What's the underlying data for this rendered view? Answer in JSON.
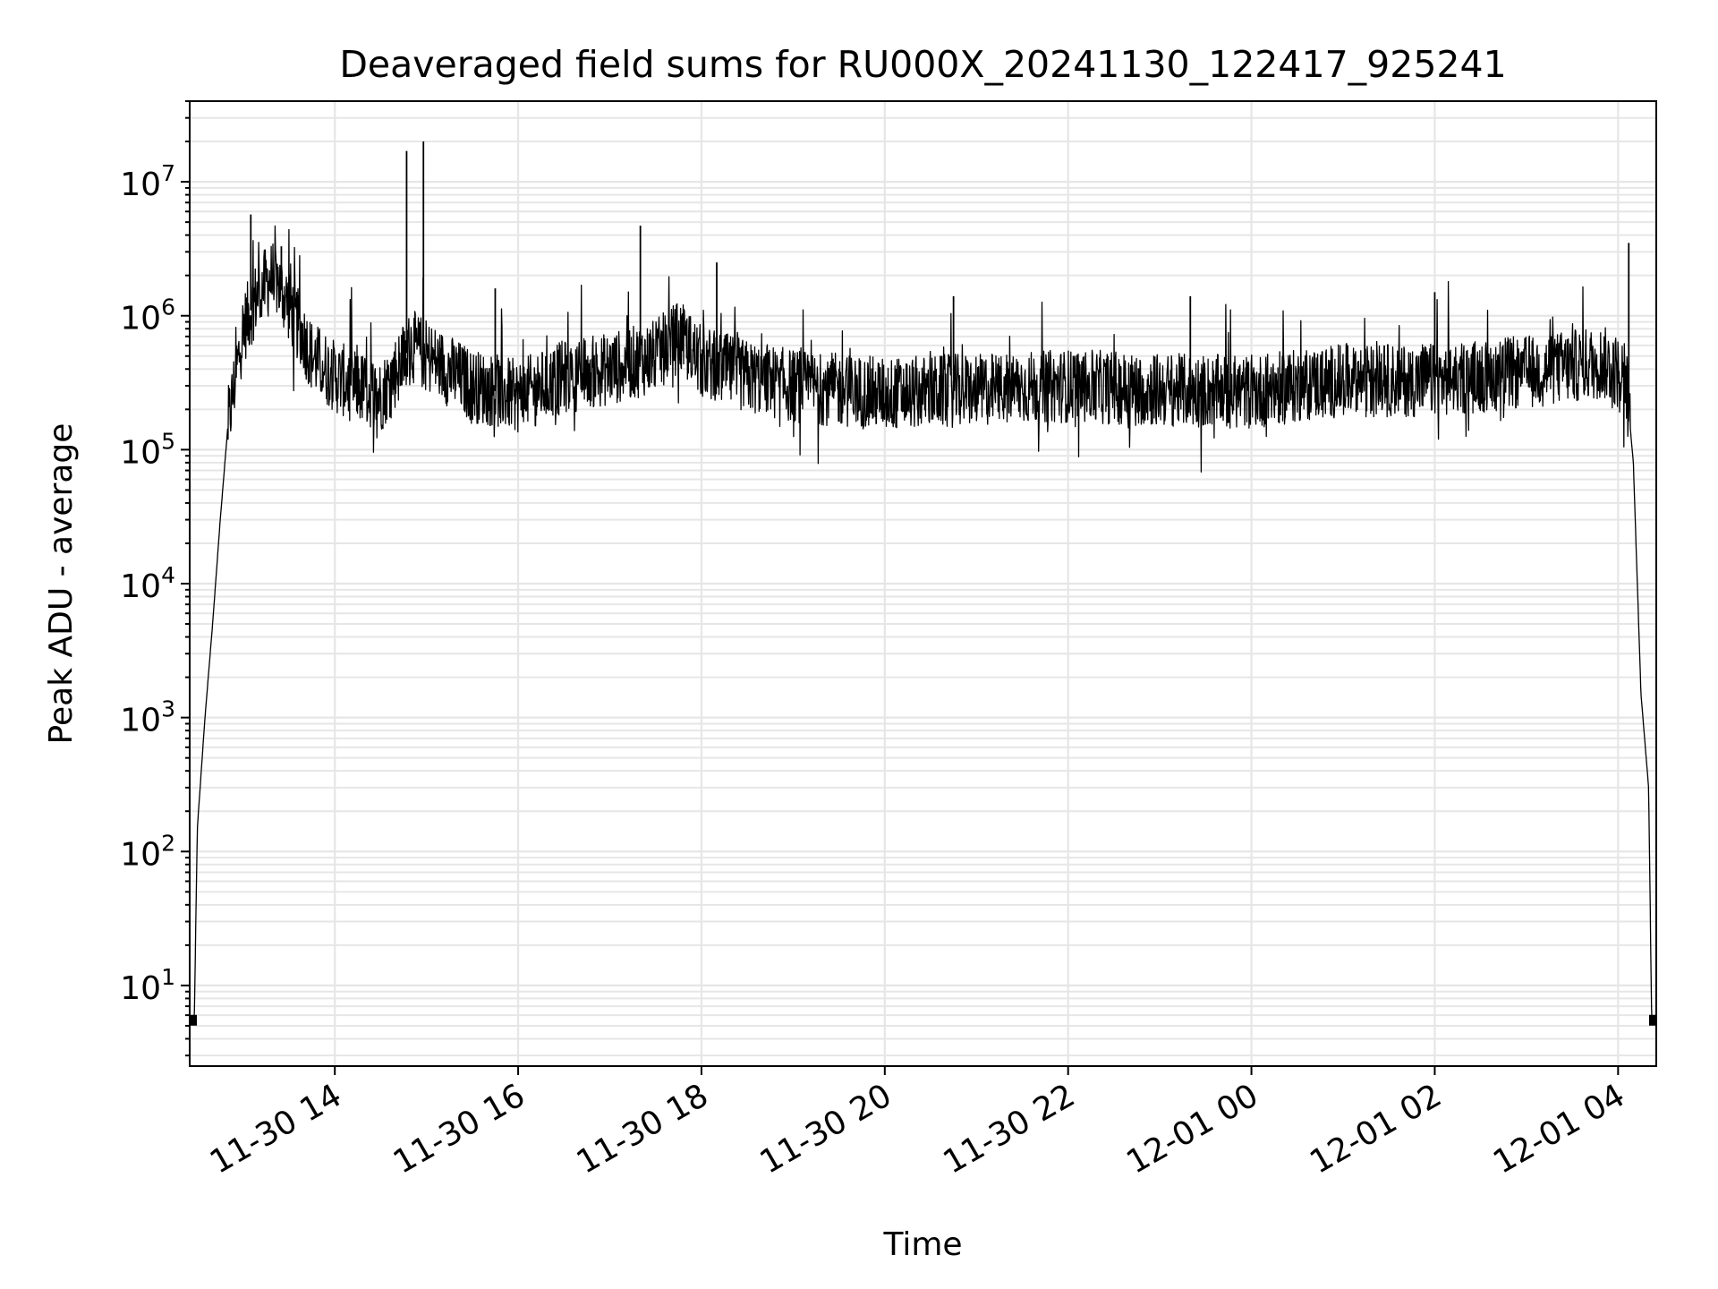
{
  "chart_data": {
    "type": "line",
    "title": "Deaveraged field sums for RU000X_20241130_122417_925241",
    "xlabel": "Time",
    "ylabel": "Peak ADU - average",
    "y_scale": "log",
    "ylim": [
      2.5,
      40000000
    ],
    "xlim": [
      "2024-11-30 12:25",
      "2024-12-01 04:25"
    ],
    "x_ticks": [
      {
        "label": "11-30 14",
        "value": "2024-11-30 14:00"
      },
      {
        "label": "11-30 16",
        "value": "2024-11-30 16:00"
      },
      {
        "label": "11-30 18",
        "value": "2024-11-30 18:00"
      },
      {
        "label": "11-30 20",
        "value": "2024-11-30 20:00"
      },
      {
        "label": "11-30 22",
        "value": "2024-11-30 22:00"
      },
      {
        "label": "12-01 00",
        "value": "2024-12-01 00:00"
      },
      {
        "label": "12-01 02",
        "value": "2024-12-01 02:00"
      },
      {
        "label": "12-01 04",
        "value": "2024-12-01 04:00"
      }
    ],
    "y_ticks": [
      {
        "base": "10",
        "exp": "1",
        "value": 10
      },
      {
        "base": "10",
        "exp": "2",
        "value": 100
      },
      {
        "base": "10",
        "exp": "3",
        "value": 1000
      },
      {
        "base": "10",
        "exp": "4",
        "value": 10000
      },
      {
        "base": "10",
        "exp": "5",
        "value": 100000
      },
      {
        "base": "10",
        "exp": "6",
        "value": 1000000
      },
      {
        "base": "10",
        "exp": "7",
        "value": 10000000
      }
    ],
    "grid": true,
    "line_color": "#000000",
    "grid_color": "#e6e6e6",
    "series": [
      {
        "points": [
          [
            "2024-11-30 12:25",
            5.5
          ],
          [
            "2024-11-30 12:28",
            5.5
          ],
          [
            "2024-11-30 12:30",
            150
          ],
          [
            "2024-11-30 12:35",
            1000
          ],
          [
            "2024-11-30 12:40",
            5000
          ],
          [
            "2024-11-30 12:45",
            30000
          ],
          [
            "2024-11-30 12:50",
            150000
          ],
          [
            "2024-11-30 13:00",
            800000
          ],
          [
            "2024-11-30 13:10",
            1500000
          ],
          [
            "2024-11-30 13:20",
            2000000
          ],
          [
            "2024-11-30 13:30",
            1200000
          ],
          [
            "2024-11-30 13:45",
            500000
          ],
          [
            "2024-11-30 14:00",
            350000
          ],
          [
            "2024-11-30 14:30",
            250000
          ],
          [
            "2024-11-30 14:50",
            600000
          ],
          [
            "2024-11-30 15:00",
            500000
          ],
          [
            "2024-11-30 15:30",
            300000
          ],
          [
            "2024-11-30 16:00",
            250000
          ],
          [
            "2024-11-30 16:30",
            350000
          ],
          [
            "2024-11-30 17:00",
            400000
          ],
          [
            "2024-11-30 17:30",
            500000
          ],
          [
            "2024-11-30 17:45",
            700000
          ],
          [
            "2024-11-30 18:00",
            450000
          ],
          [
            "2024-11-30 18:30",
            350000
          ],
          [
            "2024-11-30 19:00",
            300000
          ],
          [
            "2024-11-30 20:00",
            260000
          ],
          [
            "2024-11-30 21:00",
            280000
          ],
          [
            "2024-11-30 22:00",
            300000
          ],
          [
            "2024-11-30 23:00",
            280000
          ],
          [
            "2024-12-01 00:00",
            270000
          ],
          [
            "2024-12-01 01:00",
            330000
          ],
          [
            "2024-12-01 02:00",
            330000
          ],
          [
            "2024-12-01 03:00",
            380000
          ],
          [
            "2024-12-01 03:50",
            450000
          ],
          [
            "2024-12-01 04:05",
            350000
          ],
          [
            "2024-12-01 04:10",
            80000
          ],
          [
            "2024-12-01 04:15",
            1500
          ],
          [
            "2024-12-01 04:20",
            300
          ],
          [
            "2024-12-01 04:22",
            5.5
          ],
          [
            "2024-12-01 04:25",
            5.5
          ]
        ],
        "spikes": [
          [
            "2024-11-30 13:05",
            5700000
          ],
          [
            "2024-11-30 13:25",
            3300000
          ],
          [
            "2024-11-30 14:47",
            17000000
          ],
          [
            "2024-11-30 14:58",
            20000000
          ],
          [
            "2024-11-30 15:45",
            1600000
          ],
          [
            "2024-11-30 17:20",
            4700000
          ],
          [
            "2024-11-30 18:10",
            2500000
          ],
          [
            "2024-11-30 20:45",
            1400000
          ],
          [
            "2024-11-30 23:20",
            1400000
          ],
          [
            "2024-12-01 02:00",
            1500000
          ],
          [
            "2024-12-01 04:07",
            3500000
          ]
        ]
      }
    ]
  }
}
